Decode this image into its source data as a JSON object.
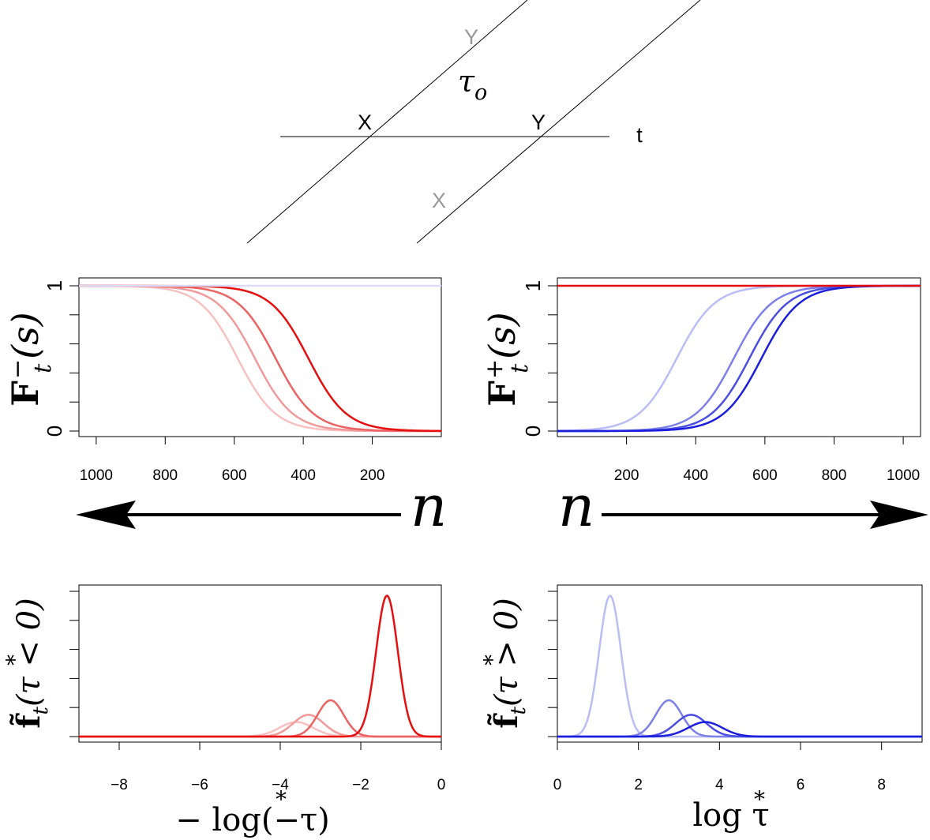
{
  "diagram": {
    "x_top": "X",
    "y_top": "Y",
    "tau_o": "τ",
    "tau_o_sub": "o",
    "t_label": "t",
    "y_upper": "Y",
    "x_lower": "X"
  },
  "colors": {
    "red_shades": [
      "#f8c0c0",
      "#f29a9a",
      "#eb6363",
      "#e60f0f"
    ],
    "blue_shades": [
      "#bbbdf5",
      "#7e80ea",
      "#4b4ee2",
      "#1b1edb"
    ],
    "axis": "#000000",
    "diagram_line": "#000000",
    "diagram_gray": "#999999"
  },
  "arrows": {
    "left_label": "n",
    "right_label": "n"
  },
  "chart_data": [
    {
      "type": "line",
      "id": "F_minus",
      "ylabel": "F",
      "ylabel_sub": "t",
      "ylabel_sup": "−",
      "ylabel_arg": "(s)",
      "x_reversed": true,
      "xlim": [
        0,
        1050
      ],
      "ylim": [
        0,
        1
      ],
      "x_ticks": [
        1000,
        800,
        600,
        400,
        200
      ],
      "y_tick_labels": [
        "0",
        "1"
      ],
      "series": [
        {
          "shape": "sigmoid_down",
          "mid": 590,
          "width": 55,
          "color_index": 0
        },
        {
          "shape": "sigmoid_down",
          "mid": 540,
          "width": 55,
          "color_index": 1
        },
        {
          "shape": "sigmoid_down",
          "mid": 480,
          "width": 55,
          "color_index": 2
        },
        {
          "shape": "sigmoid_down",
          "mid": 385,
          "width": 55,
          "color_index": 3
        },
        {
          "shape": "constant",
          "value": 1,
          "color": "#dcdcf8"
        }
      ]
    },
    {
      "type": "line",
      "id": "F_plus",
      "ylabel": "F",
      "ylabel_sub": "t",
      "ylabel_sup": "+",
      "ylabel_arg": "(s)",
      "x_reversed": false,
      "xlim": [
        0,
        1050
      ],
      "ylim": [
        0,
        1
      ],
      "x_ticks": [
        200,
        400,
        600,
        800,
        1000
      ],
      "y_tick_labels": [
        "0",
        "1"
      ],
      "series": [
        {
          "shape": "sigmoid_up",
          "mid": 345,
          "width": 55,
          "color_index": 0
        },
        {
          "shape": "sigmoid_up",
          "mid": 510,
          "width": 55,
          "color_index": 1
        },
        {
          "shape": "sigmoid_up",
          "mid": 555,
          "width": 55,
          "color_index": 2
        },
        {
          "shape": "sigmoid_up",
          "mid": 590,
          "width": 55,
          "color_index": 3
        },
        {
          "shape": "constant",
          "value": 1,
          "color": "#e60f0f"
        }
      ]
    },
    {
      "type": "line",
      "id": "f_neg",
      "ylabel": "f̃",
      "ylabel_sub": "t",
      "ylabel_arg": "(τ < 0)",
      "ylabel_star": "*",
      "xlabel": "− log(−τ)",
      "xlim": [
        -9,
        0
      ],
      "ylim": [
        0,
        1
      ],
      "x_ticks": [
        -8,
        -6,
        -4,
        -2,
        0
      ],
      "x_tick_labels": [
        "−8",
        "−6",
        "−4",
        "−2",
        "0"
      ],
      "series": [
        {
          "shape": "gauss",
          "mu": -3.6,
          "sigma": 0.42,
          "amp": 0.1,
          "color_index": 0
        },
        {
          "shape": "gauss",
          "mu": -3.3,
          "sigma": 0.38,
          "amp": 0.15,
          "color_index": 1
        },
        {
          "shape": "gauss",
          "mu": -2.75,
          "sigma": 0.32,
          "amp": 0.25,
          "color_index": 2
        },
        {
          "shape": "gauss",
          "mu": -1.35,
          "sigma": 0.27,
          "amp": 0.97,
          "color_index": 3
        }
      ]
    },
    {
      "type": "line",
      "id": "f_pos",
      "ylabel": "f̃",
      "ylabel_sub": "t",
      "ylabel_arg": "(τ > 0)",
      "ylabel_star": "*",
      "xlabel": "log τ",
      "xlim": [
        0,
        9
      ],
      "ylim": [
        0,
        1
      ],
      "x_ticks": [
        0,
        2,
        4,
        6,
        8
      ],
      "x_tick_labels": [
        "0",
        "2",
        "4",
        "6",
        "8"
      ],
      "series": [
        {
          "shape": "gauss",
          "mu": 1.3,
          "sigma": 0.27,
          "amp": 0.97,
          "color_index": 0
        },
        {
          "shape": "gauss",
          "mu": 2.75,
          "sigma": 0.32,
          "amp": 0.25,
          "color_index": 1
        },
        {
          "shape": "gauss",
          "mu": 3.3,
          "sigma": 0.38,
          "amp": 0.15,
          "color_index": 2
        },
        {
          "shape": "gauss",
          "mu": 3.65,
          "sigma": 0.42,
          "amp": 0.1,
          "color_index": 3
        }
      ]
    }
  ]
}
